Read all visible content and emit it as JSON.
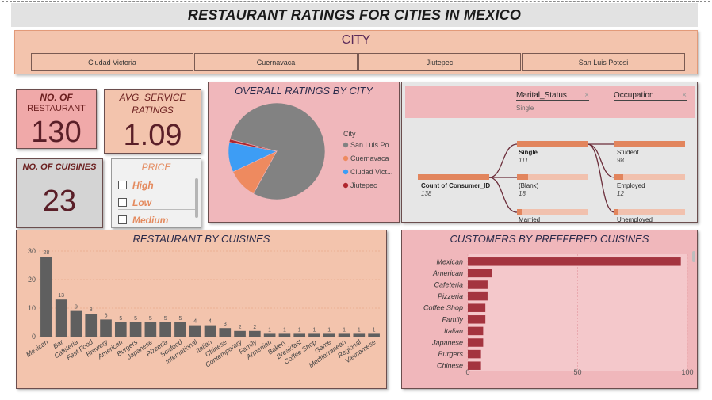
{
  "title": "RESTAURANT RATINGS FOR CITIES IN MEXICO",
  "city_slicer": {
    "title": "CITY",
    "options": [
      "Ciudad Victoria",
      "Cuernavaca",
      "Jiutepec",
      "San Luis Potosi"
    ]
  },
  "kpis": {
    "restaurants": {
      "label_line1": "NO. OF",
      "label_line2": "RESTAURANT",
      "value": "130"
    },
    "service": {
      "label_line1": "AVG. SERVICE",
      "label_line2": "RATINGS",
      "value": "1.09"
    },
    "cuisines": {
      "label": "NO. OF CUISINES",
      "value": "23"
    }
  },
  "price_slicer": {
    "title": "PRICE",
    "options": [
      "High",
      "Low",
      "Medium"
    ]
  },
  "decomp_tree": {
    "filters": [
      {
        "name": "Marital_Status",
        "value": "Single"
      },
      {
        "name": "Occupation",
        "value": ""
      }
    ],
    "root": {
      "label": "Count of Consumer_ID",
      "value": "138"
    },
    "level1": [
      {
        "label": "Single",
        "value": "111"
      },
      {
        "label": "(Blank)",
        "value": "18"
      },
      {
        "label": "Married",
        "value": ""
      }
    ],
    "level2": [
      {
        "label": "Student",
        "value": "98"
      },
      {
        "label": "Employed",
        "value": "12"
      },
      {
        "label": "Unemployed",
        "value": ""
      }
    ]
  },
  "colors": {
    "bar_dark": "#5f5f5f",
    "bar_red": "#a4343f",
    "pie_grey": "#828282",
    "pie_orange": "#ee8a5f",
    "pie_blue": "#3d9df5",
    "pie_red": "#b0262e"
  },
  "chart_data": [
    {
      "type": "pie",
      "title": "OVERALL RATINGS BY CITY",
      "legend_title": "City",
      "legend_position": "right",
      "categories": [
        "San Luis Po...",
        "Cuernavaca",
        "Ciudad Vict...",
        "Jiutepec"
      ],
      "values": [
        79,
        10,
        10,
        1
      ]
    },
    {
      "type": "bar",
      "title": "RESTAURANT BY CUISINES",
      "categories": [
        "Mexican",
        "Bar",
        "Cafeteria",
        "Fast Food",
        "Brewery",
        "American",
        "Burgers",
        "Japanese",
        "Pizzeria",
        "Seafood",
        "International",
        "Italian",
        "Chinese",
        "Contemporary",
        "Family",
        "Armenian",
        "Bakery",
        "Breakfast",
        "Coffee Shop",
        "Game",
        "Mediterranean",
        "Regional",
        "Vietnamese"
      ],
      "values": [
        28,
        13,
        9,
        8,
        6,
        5,
        5,
        5,
        5,
        5,
        4,
        4,
        3,
        2,
        2,
        1,
        1,
        1,
        1,
        1,
        1,
        1,
        1
      ],
      "ylim": [
        0,
        30
      ],
      "yticks": [
        0,
        10,
        20,
        30
      ],
      "grid": true
    },
    {
      "type": "bar",
      "orientation": "horizontal",
      "title": "CUSTOMERS BY PREFFERED CUISINES",
      "categories": [
        "Mexican",
        "American",
        "Cafeteria",
        "Pizzeria",
        "Coffee Shop",
        "Family",
        "Italian",
        "Japanese",
        "Burgers",
        "Chinese"
      ],
      "values": [
        97,
        11,
        9,
        9,
        8,
        8,
        7,
        7,
        6,
        6
      ],
      "xlim": [
        0,
        100
      ],
      "xticks": [
        0,
        50,
        100
      ],
      "grid": true
    }
  ]
}
